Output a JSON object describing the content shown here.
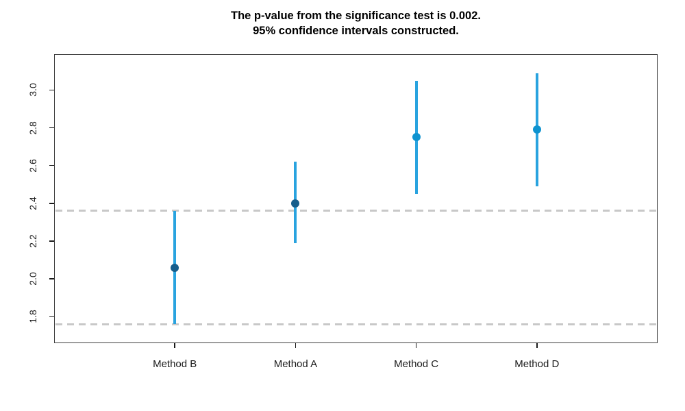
{
  "title": {
    "line1": "The p-value from the significance test is 0.002.",
    "line2": "95% confidence intervals constructed."
  },
  "chart_data": {
    "type": "scatter",
    "subtype": "confidence-interval-plot",
    "title": "The p-value from the significance test is 0.002. 95% confidence intervals constructed.",
    "categories": [
      "Method B",
      "Method A",
      "Method C",
      "Method D"
    ],
    "series": [
      {
        "name": "point_estimate",
        "values": [
          2.06,
          2.4,
          2.75,
          2.79
        ]
      }
    ],
    "ci_lower": [
      1.76,
      2.19,
      2.45,
      2.49
    ],
    "ci_upper": [
      2.36,
      2.62,
      3.05,
      3.09
    ],
    "ref_lines": [
      2.36,
      1.76
    ],
    "y_ticks": [
      1.8,
      2.0,
      2.2,
      2.4,
      2.6,
      2.8,
      3.0
    ],
    "y_tick_labels": [
      "1.8",
      "2.0",
      "2.2",
      "2.4",
      "2.6",
      "2.8",
      "3.0"
    ],
    "ylim": [
      1.66,
      3.19
    ],
    "xlabel": "",
    "ylabel": "",
    "grid": false,
    "legend": "none",
    "colors": {
      "interval_line": "#29A3DF",
      "point_colors": [
        "#175E8C",
        "#175E8C",
        "#0E93D0",
        "#0E93D0"
      ],
      "reference_line": "#C8C8C8",
      "axis": "#1A1A1A",
      "text": "#1A1A1A"
    }
  }
}
